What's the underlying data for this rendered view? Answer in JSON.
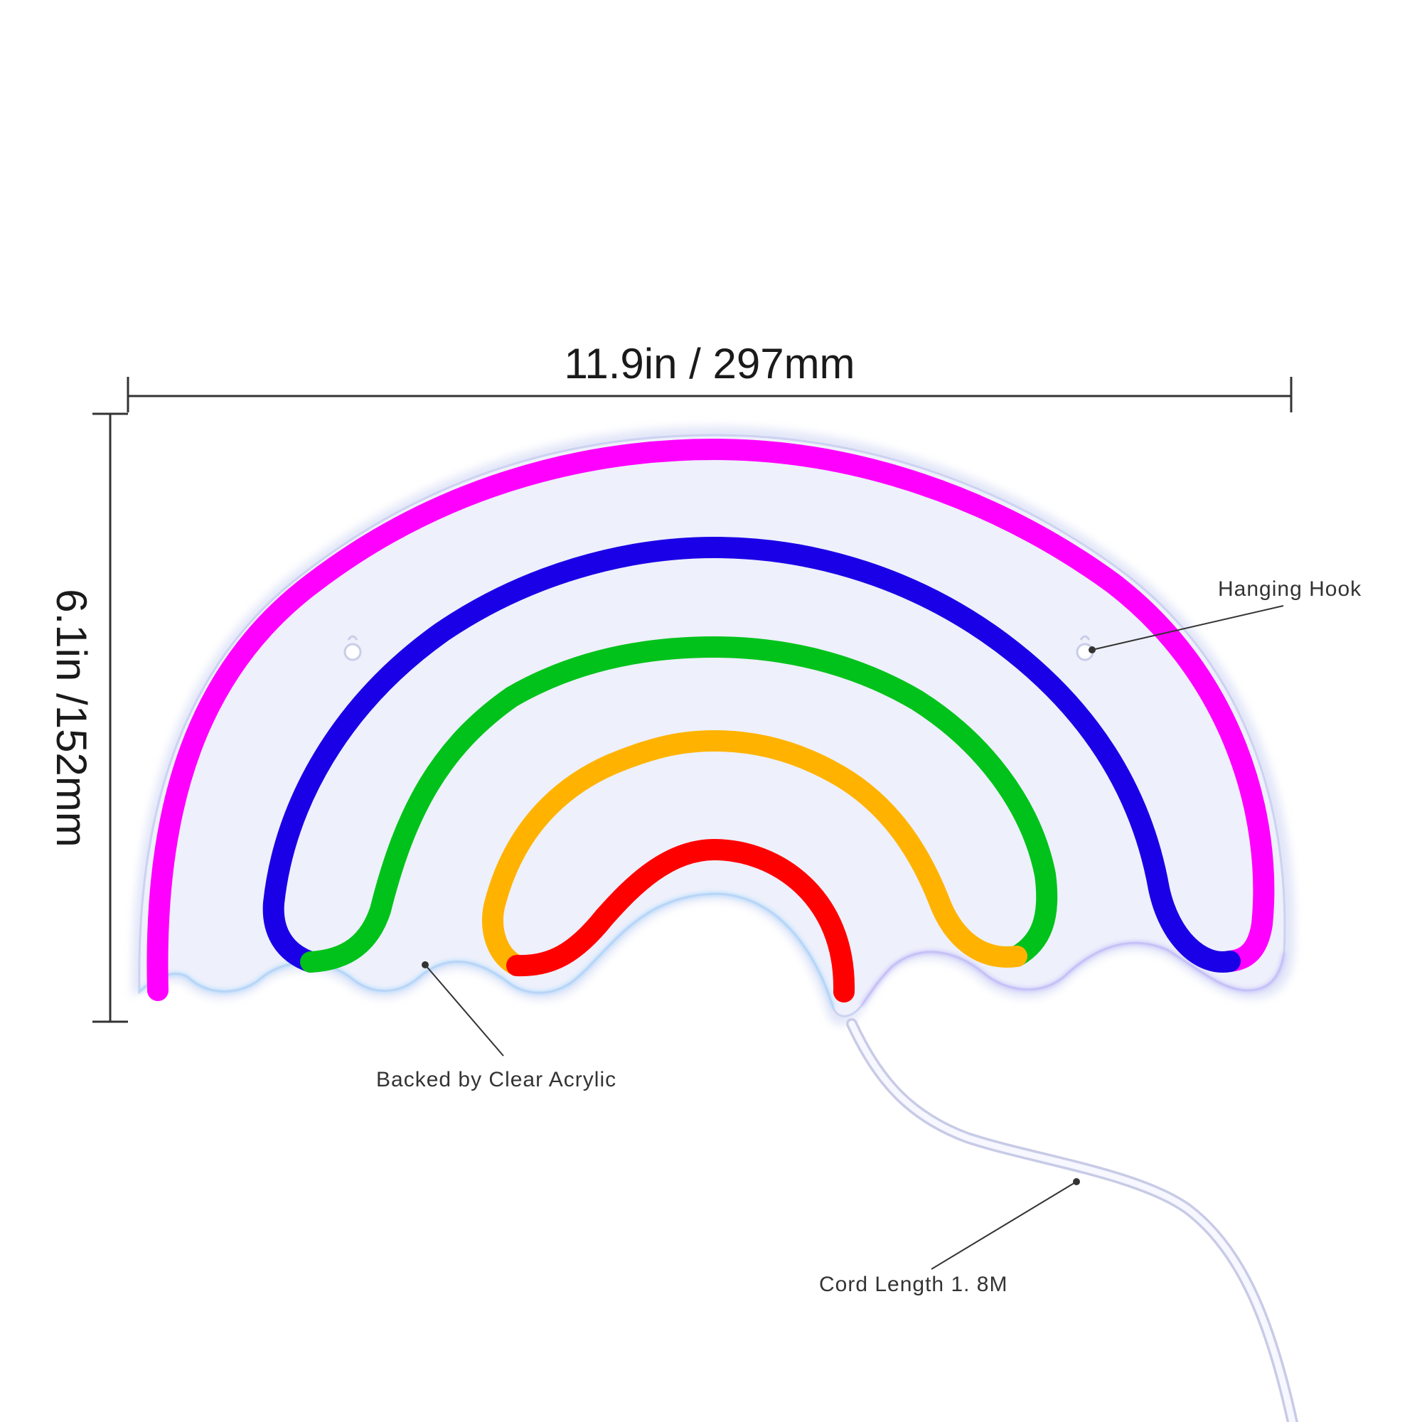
{
  "dimensions": {
    "width_label": "11.9in / 297mm",
    "height_label": "6.1in /152mm"
  },
  "callouts": {
    "hanging_hook": "Hanging Hook",
    "backing": "Backed by Clear Acrylic",
    "cord": "Cord Length 1. 8M"
  },
  "colors": {
    "magenta": "#ff00ff",
    "blue": "#1a00e6",
    "green": "#00c21a",
    "orange": "#ffb300",
    "red": "#ff0000",
    "acrylic": "#eef0fb",
    "dimension_line": "#333333"
  }
}
